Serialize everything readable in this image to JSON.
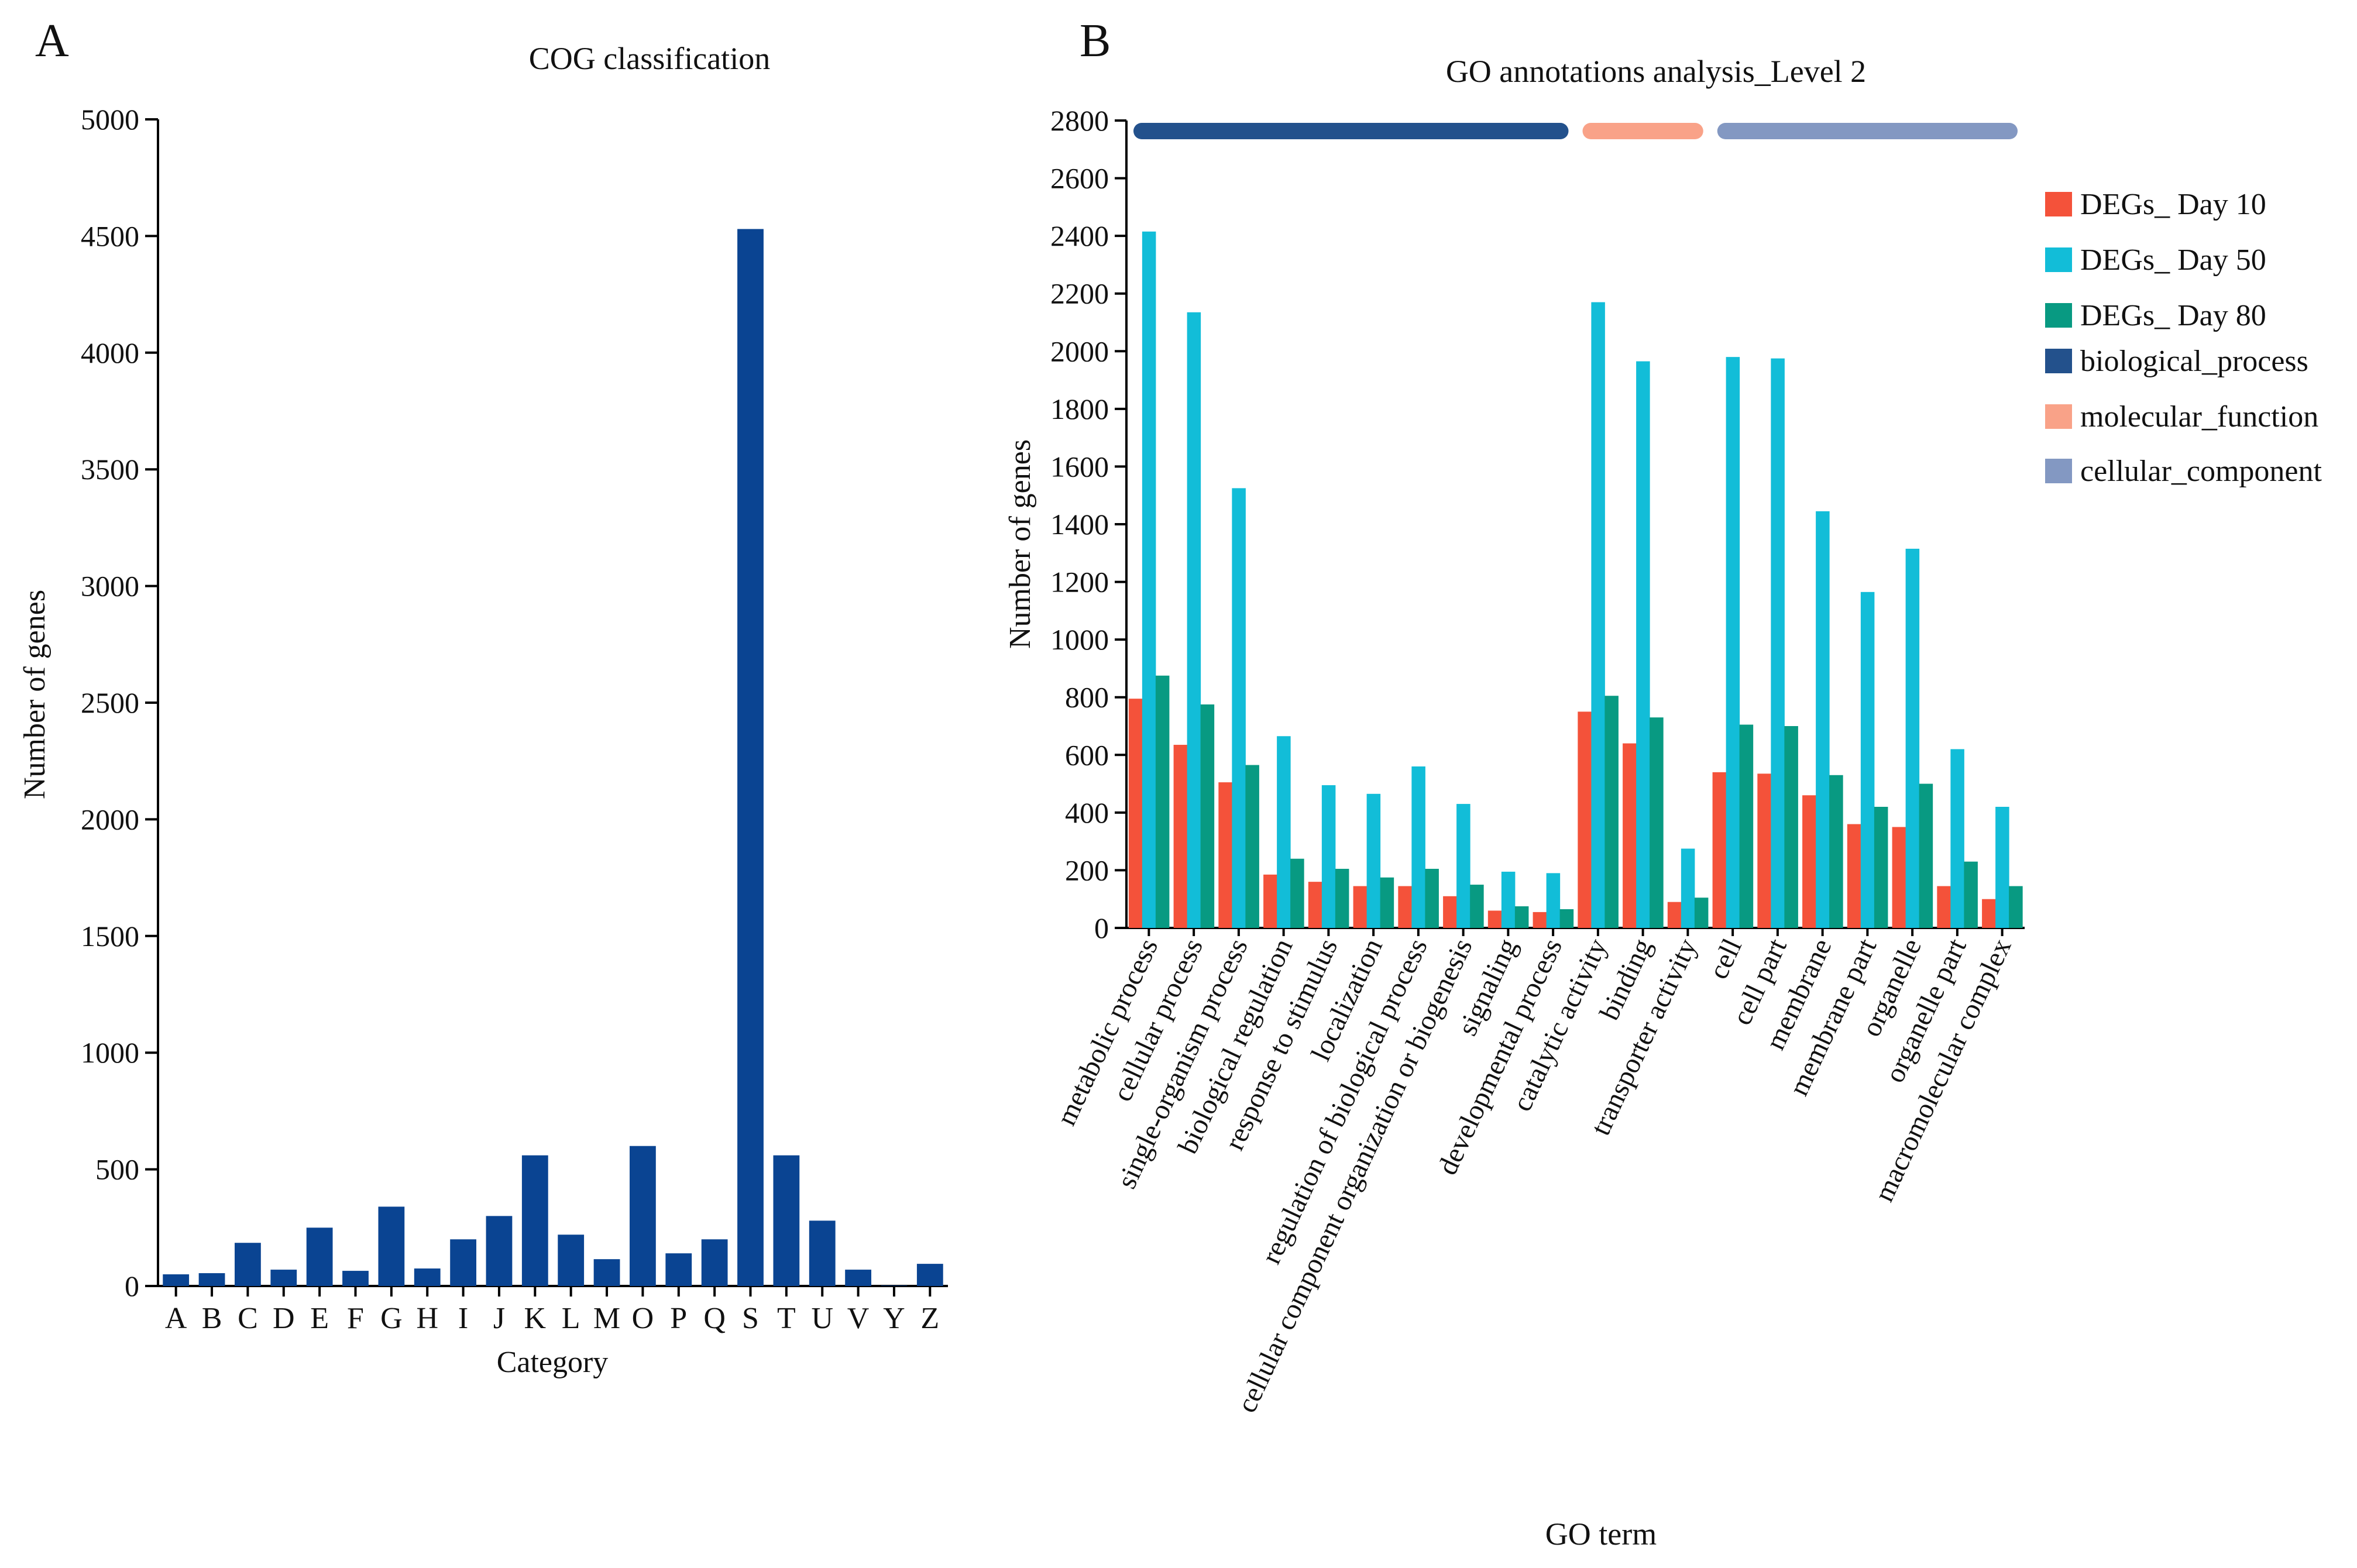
{
  "panels": {
    "a_label": "A",
    "b_label": "B"
  },
  "colors": {
    "cog_bar": "#0A4492",
    "day10": "#F4523A",
    "day50": "#12BDD8",
    "day80": "#089A82",
    "biological_process": "#23518C",
    "molecular_function": "#F9A288",
    "cellular_component": "#8398C2"
  },
  "chart_data": [
    {
      "type": "bar",
      "title": "COG classification",
      "xlabel": "Category",
      "ylabel": "Number of genes",
      "ylim": [
        0,
        5000
      ],
      "yticks": [
        0,
        500,
        1000,
        1500,
        2000,
        2500,
        3000,
        3500,
        4000,
        4500,
        5000
      ],
      "categories": [
        "A",
        "B",
        "C",
        "D",
        "E",
        "F",
        "G",
        "H",
        "I",
        "J",
        "K",
        "L",
        "M",
        "O",
        "P",
        "Q",
        "S",
        "T",
        "U",
        "V",
        "Y",
        "Z"
      ],
      "values": [
        50,
        55,
        185,
        70,
        250,
        65,
        340,
        75,
        200,
        300,
        560,
        220,
        115,
        600,
        140,
        200,
        4530,
        560,
        280,
        70,
        2,
        95
      ]
    },
    {
      "type": "bar",
      "title": "GO annotations analysis_Level 2",
      "xlabel": "GO term",
      "ylabel": "Number of genes",
      "ylim": [
        0,
        2800
      ],
      "yticks": [
        0,
        200,
        400,
        600,
        800,
        1000,
        1200,
        1400,
        1600,
        1800,
        2000,
        2200,
        2400,
        2600,
        2800
      ],
      "categories": [
        "metabolic process",
        "cellular process",
        "single-organism process",
        "biological regulation",
        "response to stimulus",
        "localization",
        "regulation of biological process",
        "cellular component organization or biogenesis",
        "signaling",
        "developmental process",
        "catalytic activity",
        "binding",
        "transporter activity",
        "cell",
        "cell part",
        "membrane",
        "membrane part",
        "organelle",
        "organelle part",
        "macromolecular complex"
      ],
      "series": [
        {
          "name": "DEGs_ Day 10",
          "values": [
            795,
            635,
            505,
            185,
            160,
            145,
            145,
            110,
            60,
            55,
            750,
            640,
            90,
            540,
            535,
            460,
            360,
            350,
            145,
            100
          ]
        },
        {
          "name": "DEGs_ Day 50",
          "values": [
            2415,
            2135,
            1525,
            665,
            495,
            465,
            560,
            430,
            195,
            190,
            2170,
            1965,
            275,
            1980,
            1975,
            1445,
            1165,
            1315,
            620,
            420
          ]
        },
        {
          "name": "DEGs_ Day 80",
          "values": [
            875,
            775,
            565,
            240,
            205,
            175,
            205,
            150,
            75,
            65,
            805,
            730,
            105,
            705,
            700,
            530,
            420,
            500,
            230,
            145
          ]
        }
      ],
      "groups": [
        {
          "name": "biological_process",
          "start": 0,
          "end": 9
        },
        {
          "name": "molecular_function",
          "start": 10,
          "end": 12
        },
        {
          "name": "cellular_component",
          "start": 13,
          "end": 19
        }
      ],
      "legend_position": "right"
    }
  ]
}
